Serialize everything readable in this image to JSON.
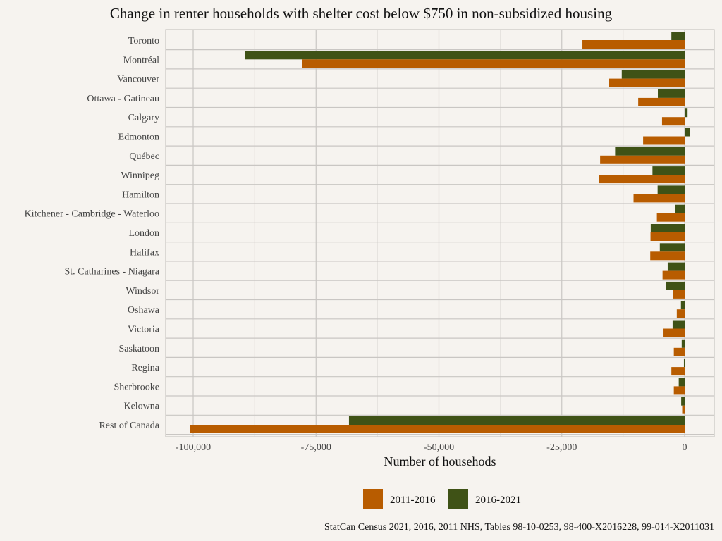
{
  "chart_data": {
    "type": "bar",
    "orientation": "horizontal",
    "title": "Change in renter households with shelter cost below $750 in non-subsidized housing",
    "xlabel": "Number of househods",
    "ylabel": "",
    "xlim": [
      -106000,
      6000
    ],
    "xticks": [
      -100000,
      -75000,
      -50000,
      -25000,
      0
    ],
    "xtick_labels": [
      "-100,000",
      "-75,000",
      "-50,000",
      "-25,000",
      "0"
    ],
    "grid": true,
    "legend_position": "bottom",
    "categories": [
      "Toronto",
      "Montréal",
      "Vancouver",
      "Ottawa - Gatineau",
      "Calgary",
      "Edmonton",
      "Québec",
      "Winnipeg",
      "Hamilton",
      "Kitchener - Cambridge - Waterloo",
      "London",
      "Halifax",
      "St. Catharines - Niagara",
      "Windsor",
      "Oshawa",
      "Victoria",
      "Saskatoon",
      "Regina",
      "Sherbrooke",
      "Kelowna",
      "Rest of Canada"
    ],
    "series": [
      {
        "name": "2011-2016",
        "color": "#b85c00",
        "values": [
          -20800,
          -77900,
          -15350,
          -9450,
          -4600,
          -8450,
          -17200,
          -17500,
          -10400,
          -5650,
          -6950,
          -7000,
          -4500,
          -2400,
          -1600,
          -4300,
          -2200,
          -2700,
          -2200,
          -500,
          -100600
        ]
      },
      {
        "name": "2016-2021",
        "color": "#3f5216",
        "values": [
          -2700,
          -89500,
          -12800,
          -5450,
          600,
          1100,
          -14150,
          -6550,
          -5500,
          -1900,
          -6900,
          -5050,
          -3450,
          -3850,
          -750,
          -2450,
          -600,
          -150,
          -1200,
          -700,
          -68300
        ]
      }
    ],
    "caption": "StatCan Census 2021, 2016, 2011 NHS, Tables 98-10-0253, 98-400-X2016228, 99-014-X2011031"
  }
}
